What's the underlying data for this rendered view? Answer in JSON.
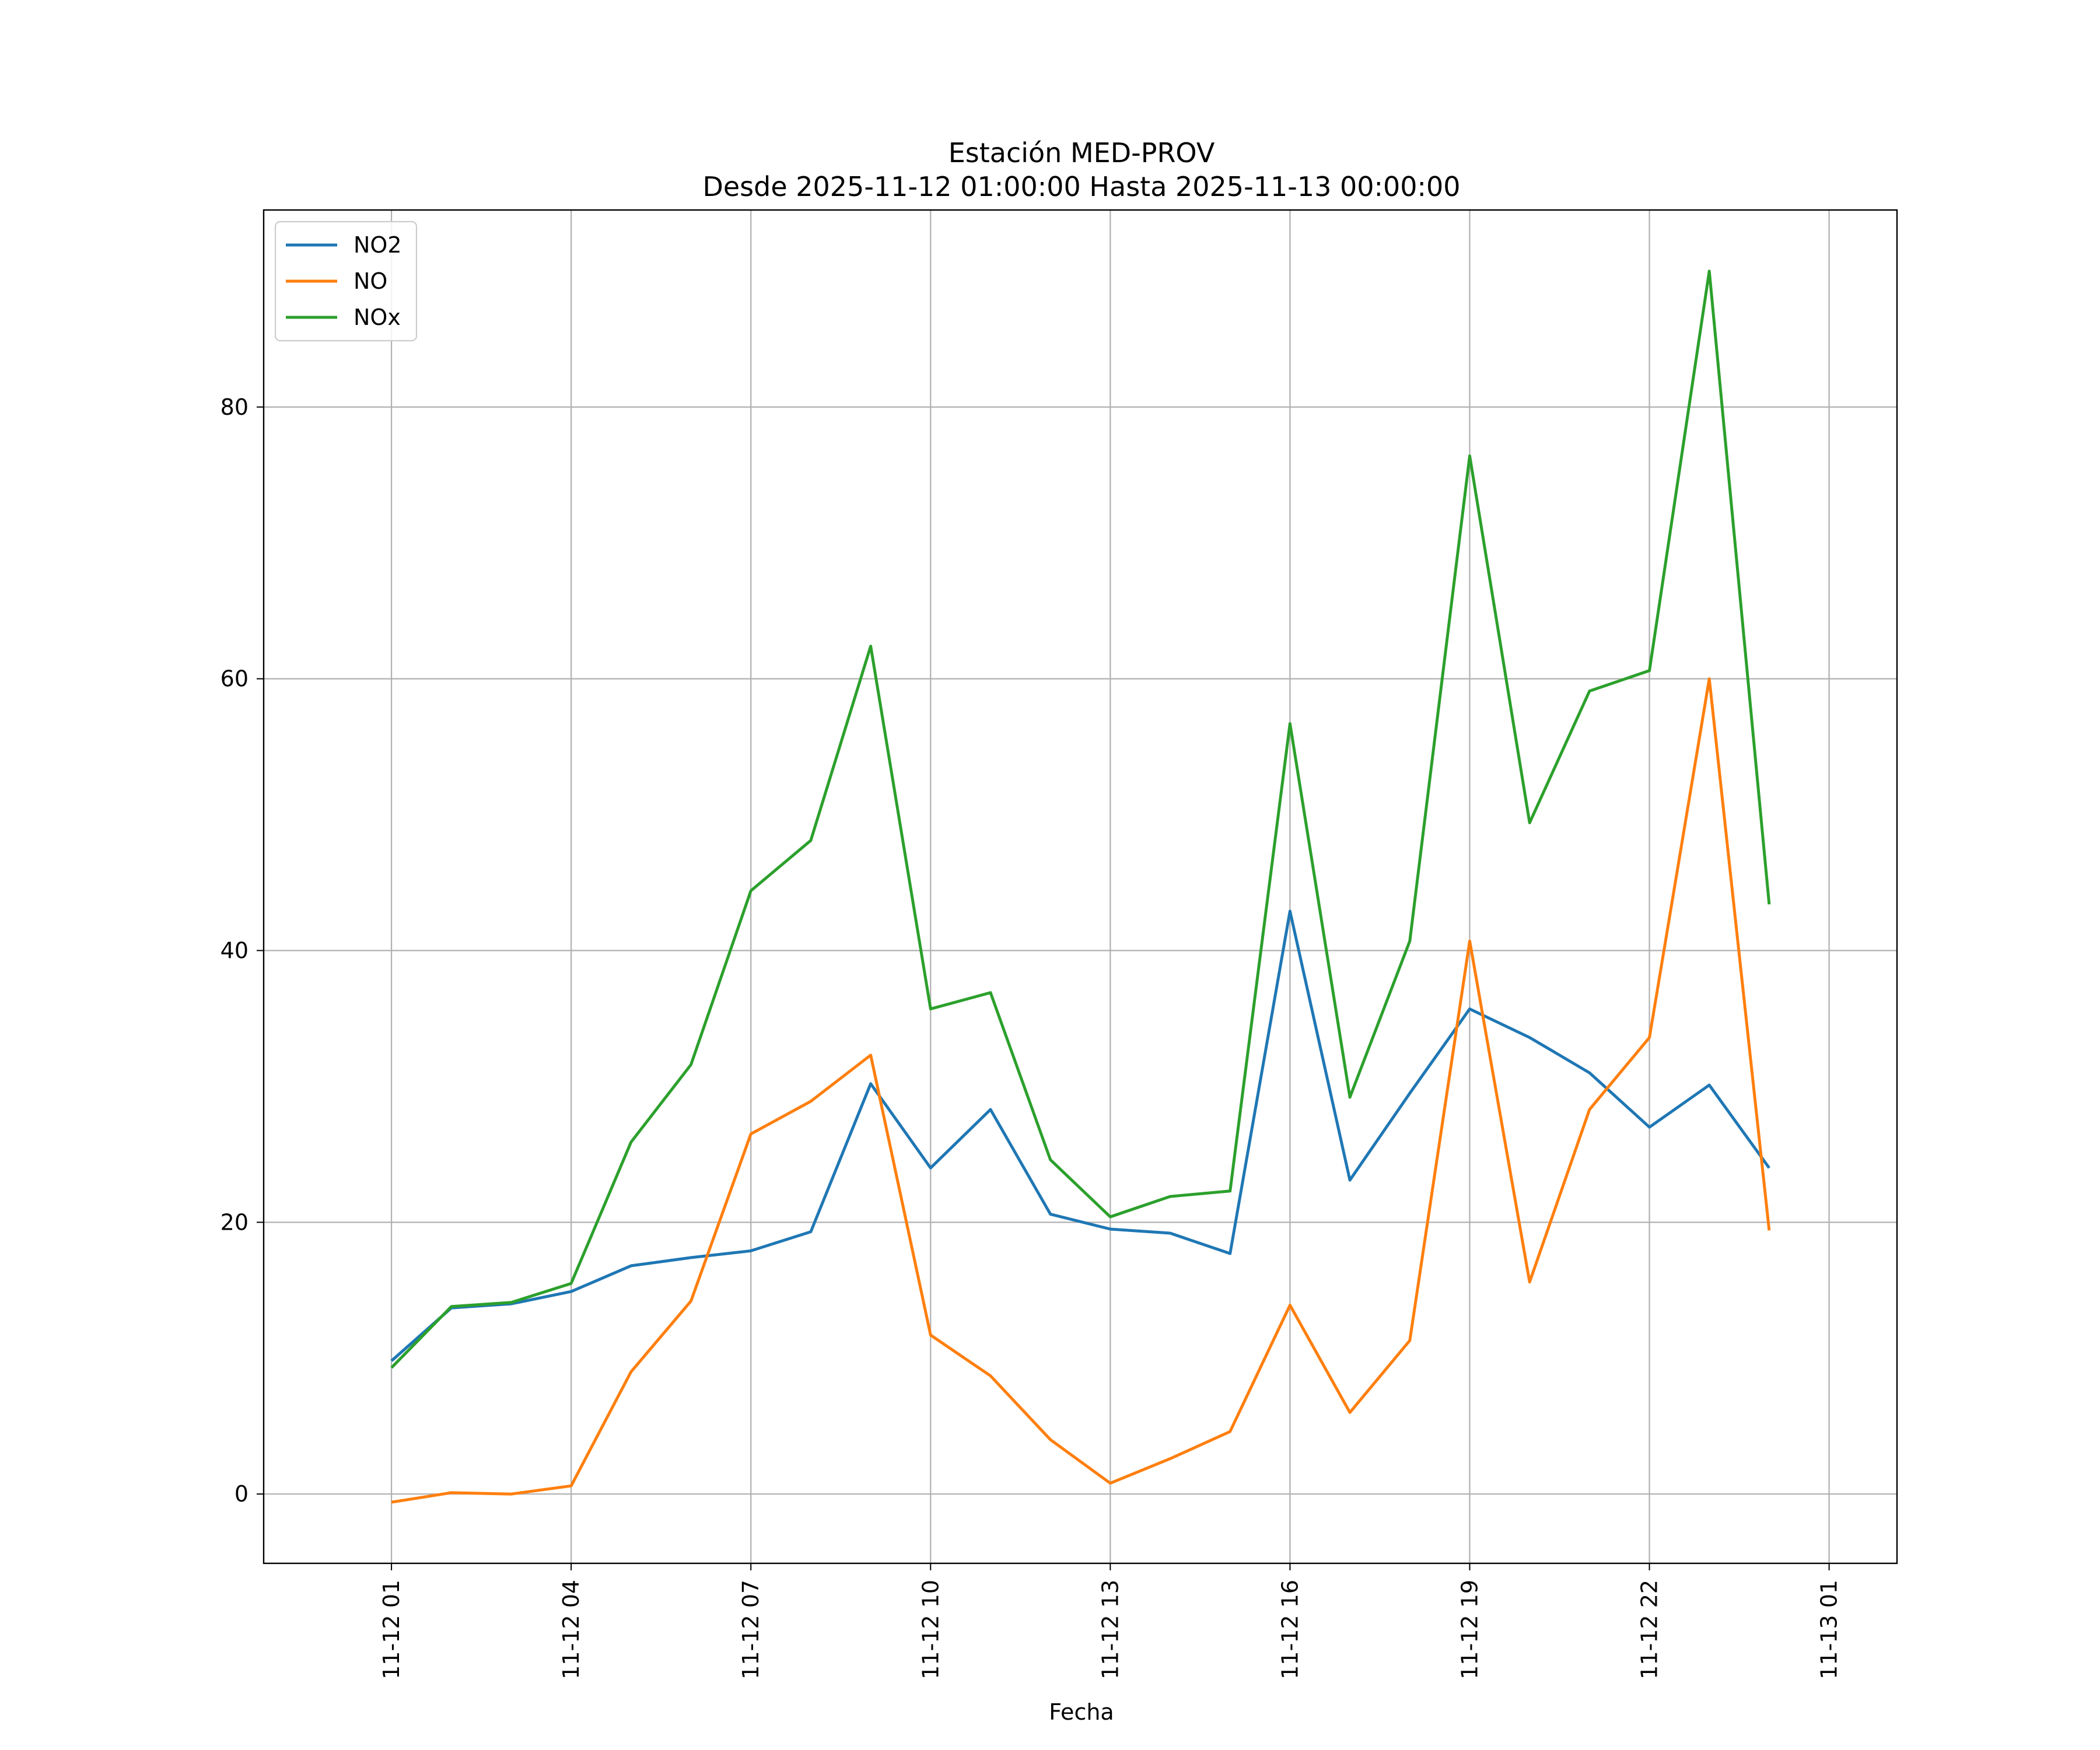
{
  "chart_data": {
    "type": "line",
    "title_line1": "Estación MED-PROV",
    "title_line2": "Desde 2025-11-12 01:00:00 Hasta 2025-11-13 00:00:00",
    "xlabel": "Fecha",
    "ylabel": "",
    "x": [
      "2025-11-12 01:00",
      "2025-11-12 02:00",
      "2025-11-12 03:00",
      "2025-11-12 04:00",
      "2025-11-12 05:00",
      "2025-11-12 06:00",
      "2025-11-12 07:00",
      "2025-11-12 08:00",
      "2025-11-12 09:00",
      "2025-11-12 10:00",
      "2025-11-12 11:00",
      "2025-11-12 12:00",
      "2025-11-12 13:00",
      "2025-11-12 14:00",
      "2025-11-12 15:00",
      "2025-11-12 16:00",
      "2025-11-12 17:00",
      "2025-11-12 18:00",
      "2025-11-12 19:00",
      "2025-11-12 20:00",
      "2025-11-12 21:00",
      "2025-11-12 22:00",
      "2025-11-12 23:00",
      "2025-11-13 00:00"
    ],
    "series": [
      {
        "name": "NO2",
        "color": "#1f77b4",
        "values": [
          9.8,
          13.7,
          14.0,
          14.9,
          16.8,
          17.4,
          17.9,
          19.3,
          30.2,
          24.0,
          28.3,
          20.6,
          19.5,
          19.2,
          17.7,
          42.9,
          23.1,
          29.5,
          35.7,
          33.6,
          31.0,
          27.0,
          30.1,
          24.0
        ]
      },
      {
        "name": "NO",
        "color": "#ff7f0e",
        "values": [
          -0.6,
          0.1,
          0.0,
          0.6,
          9.0,
          14.2,
          26.5,
          28.9,
          32.3,
          11.7,
          8.7,
          4.0,
          0.8,
          2.6,
          4.6,
          13.9,
          6.0,
          11.3,
          40.7,
          15.6,
          28.3,
          33.6,
          60.0,
          19.4
        ]
      },
      {
        "name": "NOx",
        "color": "#2ca02c",
        "values": [
          9.3,
          13.8,
          14.1,
          15.5,
          25.9,
          31.6,
          44.4,
          48.1,
          62.4,
          35.7,
          36.9,
          24.6,
          20.4,
          21.9,
          22.3,
          56.7,
          29.2,
          40.7,
          76.4,
          49.4,
          59.1,
          60.6,
          90.0,
          43.4
        ]
      }
    ],
    "xticks": [
      "11-12 01",
      "11-12 04",
      "11-12 07",
      "11-12 10",
      "11-12 13",
      "11-12 16",
      "11-12 19",
      "11-12 22",
      "11-13 01"
    ],
    "yticks": [
      "0",
      "20",
      "40",
      "60",
      "80"
    ],
    "xlim": [
      "2025-11-11 22:52",
      "2025-11-13 02:08"
    ],
    "ylim": [
      -5.1,
      94.5
    ],
    "grid": true,
    "legend_position": "upper left"
  }
}
